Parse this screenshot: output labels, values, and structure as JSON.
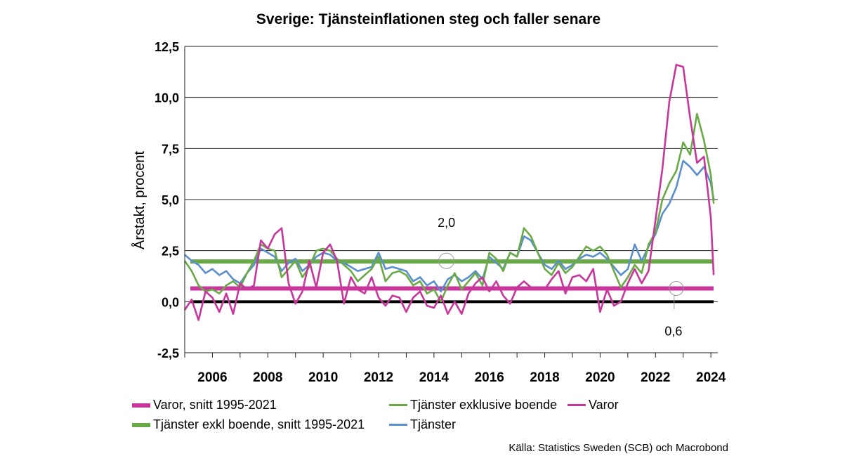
{
  "chart_data": {
    "type": "line",
    "title": "Sverige: Tjänsteinflationen steg och faller senare",
    "ylabel": "Årstakt, procent",
    "xlabel": "",
    "ylim": [
      -2.5,
      12.5
    ],
    "xlim": [
      2005.0,
      2024.25
    ],
    "yticks": [
      "12,5",
      "10,0",
      "7,5",
      "5,0",
      "2,5",
      "0,0",
      "-2,5"
    ],
    "ytick_values": [
      12.5,
      10.0,
      7.5,
      5.0,
      2.5,
      0.0,
      -2.5
    ],
    "xticks": [
      "2006",
      "2008",
      "2010",
      "2012",
      "2014",
      "2016",
      "2018",
      "2020",
      "2022",
      "2024"
    ],
    "xtick_values": [
      2006,
      2008,
      2010,
      2012,
      2014,
      2016,
      2018,
      2020,
      2022,
      2024
    ],
    "grid": true,
    "legend_position": "bottom",
    "annotations": [
      {
        "text": "2,0",
        "x": 2014.45,
        "y": 2.0
      },
      {
        "text": "0,6",
        "x": 2022.75,
        "y": 0.65
      }
    ],
    "reference_lines": [
      {
        "name": "Varor, snitt 1995-2021",
        "value": 0.65,
        "color": "#c8369b"
      },
      {
        "name": "Tjänster exkl boende, snitt 1995-2021",
        "value": 1.97,
        "color": "#6aaa46"
      },
      {
        "name": "zero",
        "value": 0.0,
        "color": "#000000"
      }
    ],
    "series": [
      {
        "name": "Varor",
        "color": "#c8369b",
        "x": [
          2005.0,
          2005.25,
          2005.5,
          2005.75,
          2006.0,
          2006.25,
          2006.5,
          2006.75,
          2007.0,
          2007.25,
          2007.5,
          2007.75,
          2008.0,
          2008.25,
          2008.5,
          2008.75,
          2009.0,
          2009.25,
          2009.5,
          2009.75,
          2010.0,
          2010.25,
          2010.5,
          2010.75,
          2011.0,
          2011.25,
          2011.5,
          2011.75,
          2012.0,
          2012.25,
          2012.5,
          2012.75,
          2013.0,
          2013.25,
          2013.5,
          2013.75,
          2014.0,
          2014.25,
          2014.5,
          2014.75,
          2015.0,
          2015.25,
          2015.5,
          2015.75,
          2016.0,
          2016.25,
          2016.5,
          2016.75,
          2017.0,
          2017.25,
          2017.5,
          2017.75,
          2018.0,
          2018.25,
          2018.5,
          2018.75,
          2019.0,
          2019.25,
          2019.5,
          2019.75,
          2020.0,
          2020.25,
          2020.5,
          2020.75,
          2021.0,
          2021.25,
          2021.5,
          2021.75,
          2022.0,
          2022.25,
          2022.5,
          2022.75,
          2023.0,
          2023.25,
          2023.5,
          2023.75,
          2024.0,
          2024.1
        ],
        "values": [
          -0.4,
          0.1,
          -0.9,
          0.5,
          0.2,
          -0.5,
          0.4,
          -0.6,
          0.9,
          0.6,
          0.8,
          3.0,
          2.6,
          3.3,
          3.6,
          0.9,
          -0.1,
          0.5,
          2.0,
          0.7,
          2.4,
          2.8,
          2.0,
          -0.1,
          1.2,
          0.6,
          0.4,
          1.2,
          0.2,
          -0.2,
          0.3,
          0.2,
          -0.5,
          0.2,
          0.5,
          -0.2,
          -0.3,
          0.3,
          -0.6,
          0.0,
          -0.6,
          0.4,
          0.9,
          1.2,
          0.5,
          1.0,
          0.3,
          -0.1,
          0.7,
          1.0,
          0.7,
          0.6,
          0.6,
          1.1,
          1.5,
          0.4,
          1.2,
          1.3,
          1.0,
          1.6,
          -0.5,
          0.6,
          -0.2,
          0.0,
          0.9,
          1.6,
          0.9,
          1.5,
          4.0,
          6.5,
          9.8,
          11.6,
          11.5,
          9.0,
          6.8,
          7.1,
          4.1,
          1.3
        ]
      },
      {
        "name": "Tjänster exklusive boende",
        "color": "#6aaa46",
        "x": [
          2005.0,
          2005.25,
          2005.5,
          2005.75,
          2006.0,
          2006.25,
          2006.5,
          2006.75,
          2007.0,
          2007.25,
          2007.5,
          2007.75,
          2008.0,
          2008.25,
          2008.5,
          2008.75,
          2009.0,
          2009.25,
          2009.5,
          2009.75,
          2010.0,
          2010.25,
          2010.5,
          2010.75,
          2011.0,
          2011.25,
          2011.5,
          2011.75,
          2012.0,
          2012.25,
          2012.5,
          2012.75,
          2013.0,
          2013.25,
          2013.5,
          2013.75,
          2014.0,
          2014.25,
          2014.5,
          2014.75,
          2015.0,
          2015.25,
          2015.5,
          2015.75,
          2016.0,
          2016.25,
          2016.5,
          2016.75,
          2017.0,
          2017.25,
          2017.5,
          2017.75,
          2018.0,
          2018.25,
          2018.5,
          2018.75,
          2019.0,
          2019.25,
          2019.5,
          2019.75,
          2020.0,
          2020.25,
          2020.5,
          2020.75,
          2021.0,
          2021.25,
          2021.5,
          2021.75,
          2022.0,
          2022.25,
          2022.5,
          2022.75,
          2023.0,
          2023.25,
          2023.5,
          2023.75,
          2024.0,
          2024.1
        ],
        "values": [
          2.0,
          1.5,
          0.8,
          0.5,
          0.6,
          0.4,
          0.8,
          1.0,
          0.7,
          1.4,
          2.0,
          2.8,
          2.6,
          2.5,
          1.2,
          1.6,
          2.0,
          1.2,
          1.7,
          2.5,
          2.6,
          2.5,
          2.1,
          1.8,
          1.5,
          1.0,
          1.3,
          1.6,
          2.2,
          1.0,
          1.4,
          1.5,
          1.3,
          0.8,
          1.0,
          0.4,
          0.6,
          0.0,
          0.8,
          1.4,
          0.6,
          1.0,
          1.4,
          0.8,
          2.4,
          2.1,
          1.5,
          2.4,
          2.2,
          3.6,
          3.2,
          2.4,
          1.6,
          1.3,
          1.9,
          1.4,
          1.7,
          2.2,
          2.7,
          2.5,
          2.7,
          2.3,
          1.5,
          0.7,
          1.2,
          1.8,
          1.4,
          2.8,
          3.4,
          5.0,
          5.8,
          6.4,
          7.8,
          7.2,
          9.2,
          7.9,
          6.2,
          4.8
        ]
      },
      {
        "name": "Tjänster",
        "color": "#5a8ecc",
        "x": [
          2005.0,
          2005.25,
          2005.5,
          2005.75,
          2006.0,
          2006.25,
          2006.5,
          2006.75,
          2007.0,
          2007.25,
          2007.5,
          2007.75,
          2008.0,
          2008.25,
          2008.5,
          2008.75,
          2009.0,
          2009.25,
          2009.5,
          2009.75,
          2010.0,
          2010.25,
          2010.5,
          2010.75,
          2011.0,
          2011.25,
          2011.5,
          2011.75,
          2012.0,
          2012.25,
          2012.5,
          2012.75,
          2013.0,
          2013.25,
          2013.5,
          2013.75,
          2014.0,
          2014.25,
          2014.5,
          2014.75,
          2015.0,
          2015.25,
          2015.5,
          2015.75,
          2016.0,
          2016.25,
          2016.5,
          2016.75,
          2017.0,
          2017.25,
          2017.5,
          2017.75,
          2018.0,
          2018.25,
          2018.5,
          2018.75,
          2019.0,
          2019.25,
          2019.5,
          2019.75,
          2020.0,
          2020.25,
          2020.5,
          2020.75,
          2021.0,
          2021.25,
          2021.5,
          2021.75,
          2022.0,
          2022.25,
          2022.5,
          2022.75,
          2023.0,
          2023.25,
          2023.5,
          2023.75,
          2024.0,
          2024.1
        ],
        "values": [
          2.3,
          2.0,
          1.8,
          1.4,
          1.6,
          1.3,
          1.5,
          1.1,
          0.9,
          1.4,
          1.8,
          2.6,
          2.4,
          2.2,
          1.5,
          1.9,
          2.1,
          1.5,
          1.8,
          2.2,
          2.4,
          2.3,
          2.0,
          1.9,
          1.7,
          1.5,
          1.6,
          1.7,
          2.4,
          1.6,
          1.7,
          1.6,
          1.5,
          1.0,
          1.2,
          0.8,
          1.0,
          0.5,
          1.1,
          1.3,
          1.0,
          1.2,
          1.5,
          1.1,
          2.2,
          1.9,
          1.6,
          2.4,
          2.2,
          3.2,
          3.0,
          2.4,
          1.8,
          1.6,
          2.0,
          1.6,
          1.8,
          2.1,
          2.3,
          2.2,
          2.4,
          2.1,
          1.7,
          1.3,
          1.6,
          2.8,
          2.0,
          2.7,
          3.3,
          4.3,
          4.8,
          5.6,
          6.9,
          6.6,
          6.2,
          6.6,
          5.8,
          5.0
        ]
      }
    ]
  },
  "legend": [
    {
      "label": "Varor, snitt 1995-2021",
      "color": "#c8369b",
      "thick": true
    },
    {
      "label": "Tjänster exklusive boende",
      "color": "#6aaa46",
      "thick": false
    },
    {
      "label": "Varor",
      "color": "#c8369b",
      "thick": false
    },
    {
      "label": "Tjänster exkl boende, snitt 1995-2021",
      "color": "#6aaa46",
      "thick": true
    },
    {
      "label": "Tjänster",
      "color": "#5a8ecc",
      "thick": false
    }
  ],
  "source": "Källa: Statistics Sweden (SCB) och Macrobond"
}
